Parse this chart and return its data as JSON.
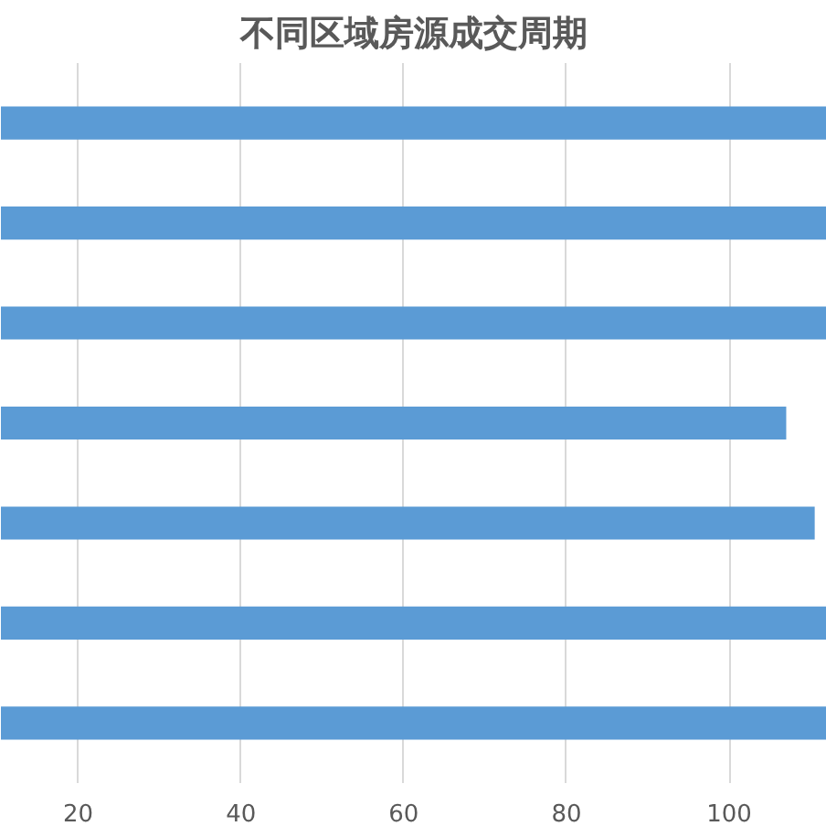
{
  "chart_data": {
    "type": "bar",
    "title": "不同区域房源成交周期",
    "orientation": "horizontal",
    "categories": [
      null,
      null,
      null,
      null,
      null,
      null,
      null
    ],
    "values": [
      112,
      112,
      112,
      107,
      110.5,
      112,
      112
    ],
    "color": "#5b9bd5",
    "xlim": [
      10.5,
      112
    ],
    "xticks": [
      20,
      40,
      60,
      80,
      100
    ],
    "grid": "x"
  }
}
